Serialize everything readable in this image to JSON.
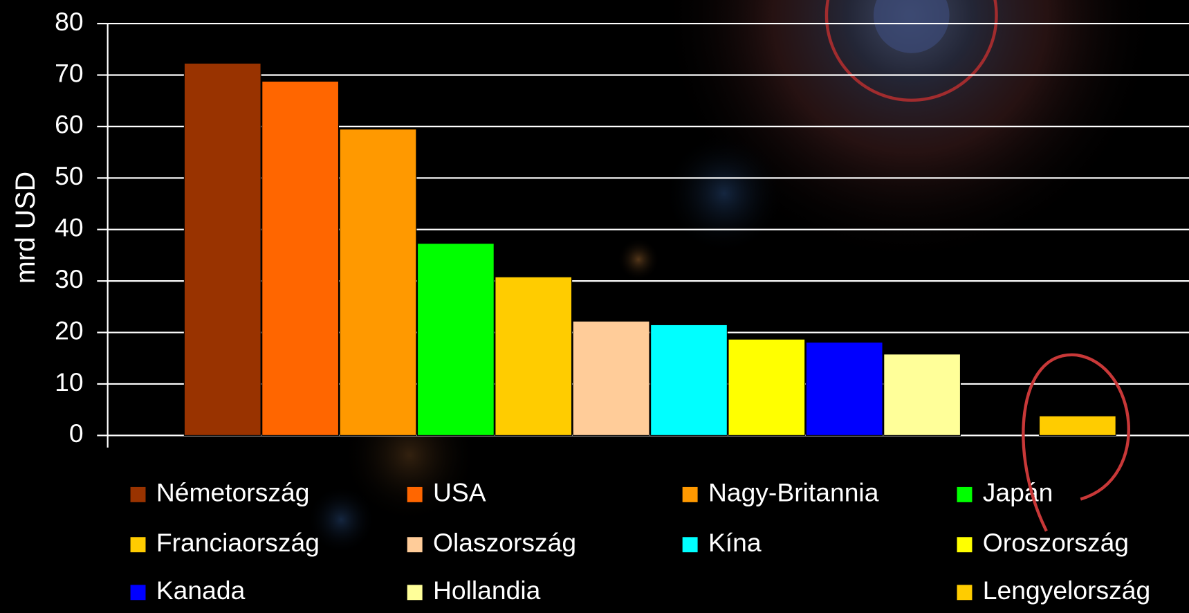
{
  "chart_data": {
    "type": "bar",
    "y_label": "mrd USD",
    "ylim": [
      0,
      80
    ],
    "yticks": [
      0,
      10,
      20,
      30,
      40,
      50,
      60,
      70,
      80
    ],
    "grid": true,
    "series": [
      {
        "name": "Németország",
        "color": "#993300",
        "values": [
          72.3
        ]
      },
      {
        "name": "USA",
        "color": "#ff6600",
        "values": [
          68.8
        ]
      },
      {
        "name": "Nagy-Britannia",
        "color": "#ff9900",
        "values": [
          59.5
        ]
      },
      {
        "name": "Japán",
        "color": "#00ff00",
        "values": [
          37.3
        ]
      },
      {
        "name": "Franciaország",
        "color": "#ffcc00",
        "values": [
          30.8
        ]
      },
      {
        "name": "Olaszország",
        "color": "#ffcc99",
        "values": [
          22.2
        ]
      },
      {
        "name": "Kína",
        "color": "#00ffff",
        "values": [
          21.5
        ]
      },
      {
        "name": "Oroszország",
        "color": "#ffff00",
        "values": [
          18.7
        ]
      },
      {
        "name": "Kanada",
        "color": "#0000ff",
        "values": [
          18.1
        ]
      },
      {
        "name": "Hollandia",
        "color": "#ffff99",
        "values": [
          15.8
        ]
      },
      {
        "name": "Lengyelország",
        "color": "#ffcc00",
        "values": [
          3.8
        ]
      }
    ]
  }
}
